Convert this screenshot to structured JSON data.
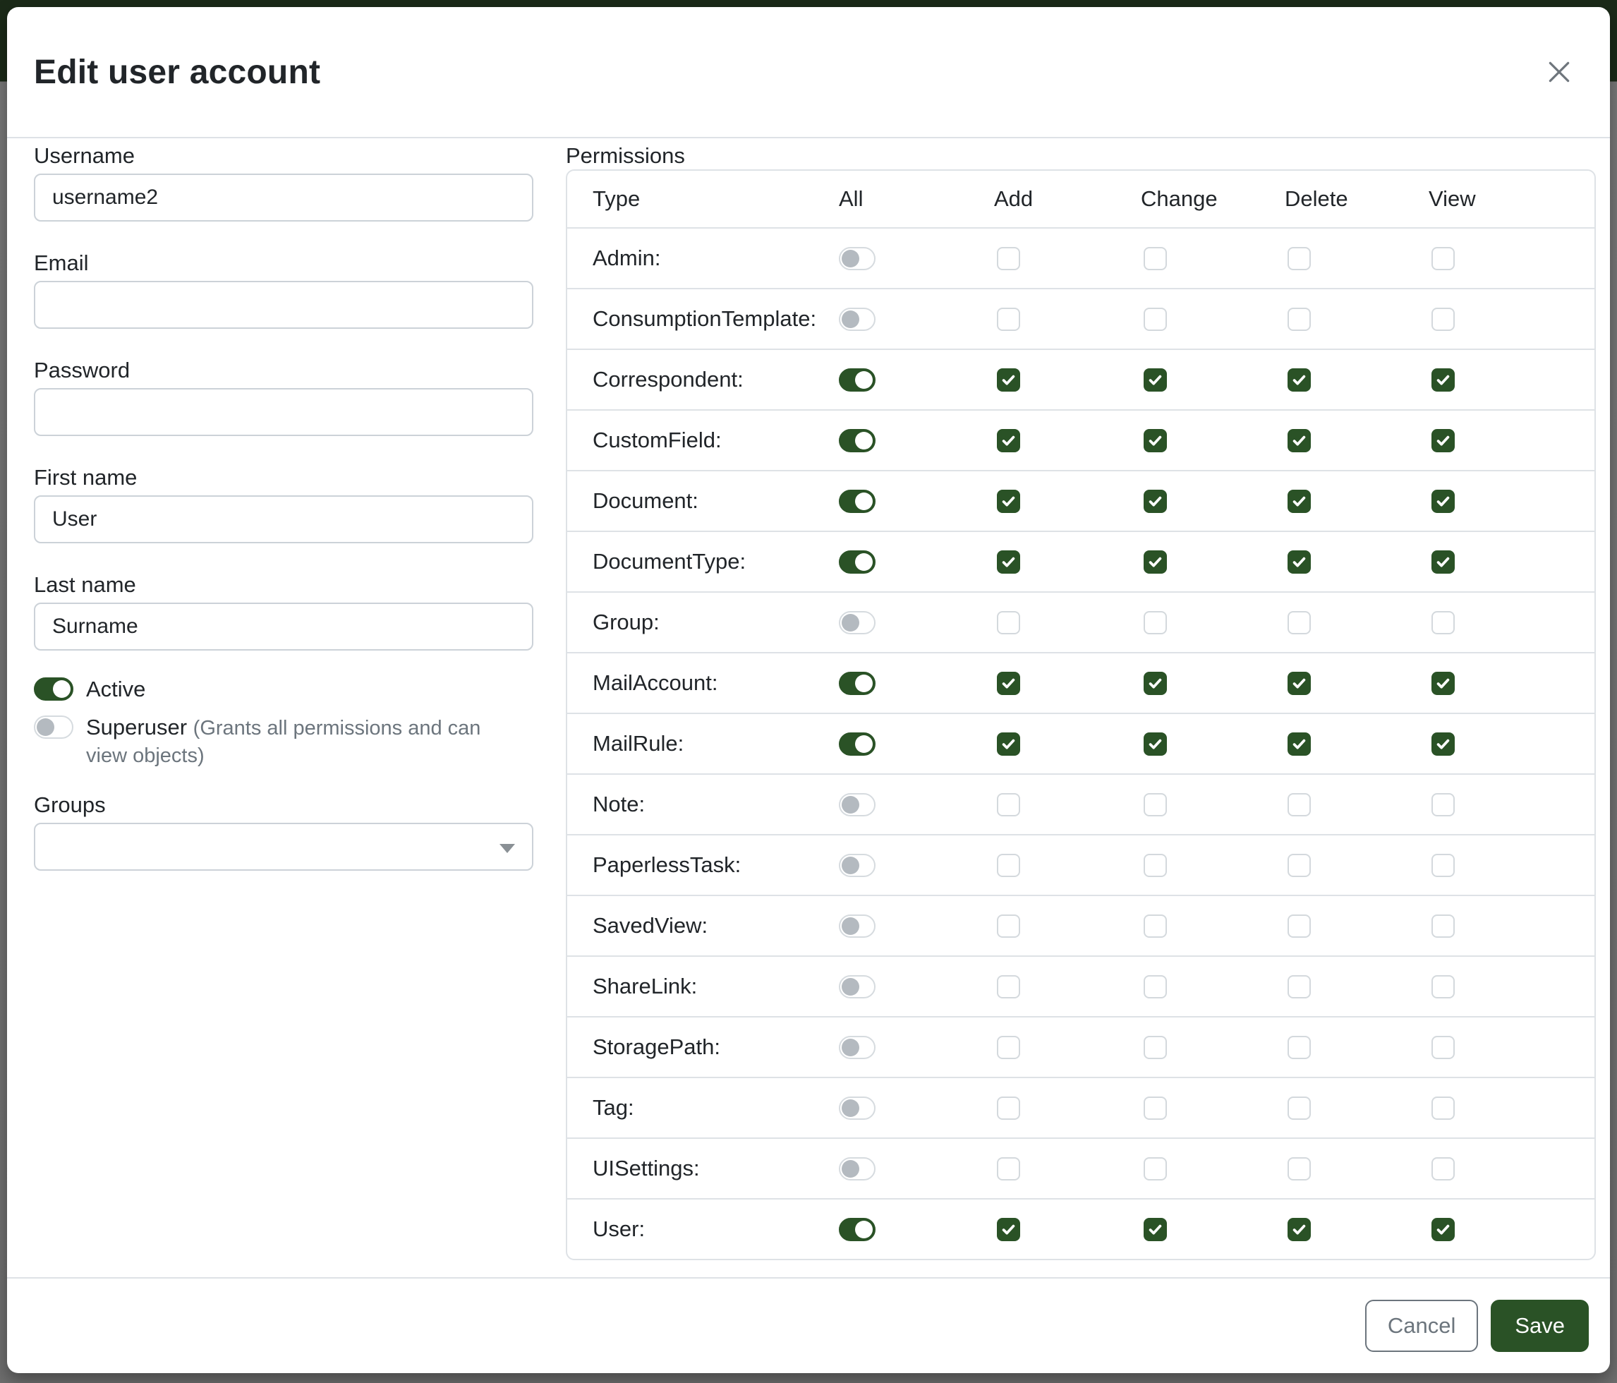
{
  "colors": {
    "accent_green": "#2a5226",
    "border_grey": "#dee2e6",
    "hint_grey": "#6c757d",
    "backdrop_top": "#1b2a18",
    "backdrop_bottom": "#6e6e6e"
  },
  "modal": {
    "title": "Edit user account",
    "close_icon": "x-icon"
  },
  "form": {
    "username": {
      "label": "Username",
      "value": "username2"
    },
    "email": {
      "label": "Email",
      "value": ""
    },
    "password": {
      "label": "Password",
      "value": ""
    },
    "first_name": {
      "label": "First name",
      "value": "User"
    },
    "last_name": {
      "label": "Last name",
      "value": "Surname"
    },
    "active": {
      "label": "Active",
      "on": true
    },
    "superuser": {
      "label": "Superuser",
      "hint": "(Grants all permissions and can view objects)",
      "on": false
    },
    "groups": {
      "label": "Groups",
      "value": ""
    }
  },
  "permissions": {
    "label": "Permissions",
    "headers": [
      "Type",
      "All",
      "Add",
      "Change",
      "Delete",
      "View"
    ],
    "rows": [
      {
        "type": "Admin:",
        "all": false,
        "add": false,
        "change": false,
        "delete": false,
        "view": false
      },
      {
        "type": "ConsumptionTemplate:",
        "all": false,
        "add": false,
        "change": false,
        "delete": false,
        "view": false
      },
      {
        "type": "Correspondent:",
        "all": true,
        "add": true,
        "change": true,
        "delete": true,
        "view": true
      },
      {
        "type": "CustomField:",
        "all": true,
        "add": true,
        "change": true,
        "delete": true,
        "view": true
      },
      {
        "type": "Document:",
        "all": true,
        "add": true,
        "change": true,
        "delete": true,
        "view": true
      },
      {
        "type": "DocumentType:",
        "all": true,
        "add": true,
        "change": true,
        "delete": true,
        "view": true
      },
      {
        "type": "Group:",
        "all": false,
        "add": false,
        "change": false,
        "delete": false,
        "view": false
      },
      {
        "type": "MailAccount:",
        "all": true,
        "add": true,
        "change": true,
        "delete": true,
        "view": true
      },
      {
        "type": "MailRule:",
        "all": true,
        "add": true,
        "change": true,
        "delete": true,
        "view": true
      },
      {
        "type": "Note:",
        "all": false,
        "add": false,
        "change": false,
        "delete": false,
        "view": false
      },
      {
        "type": "PaperlessTask:",
        "all": false,
        "add": false,
        "change": false,
        "delete": false,
        "view": false
      },
      {
        "type": "SavedView:",
        "all": false,
        "add": false,
        "change": false,
        "delete": false,
        "view": false
      },
      {
        "type": "ShareLink:",
        "all": false,
        "add": false,
        "change": false,
        "delete": false,
        "view": false
      },
      {
        "type": "StoragePath:",
        "all": false,
        "add": false,
        "change": false,
        "delete": false,
        "view": false
      },
      {
        "type": "Tag:",
        "all": false,
        "add": false,
        "change": false,
        "delete": false,
        "view": false
      },
      {
        "type": "UISettings:",
        "all": false,
        "add": false,
        "change": false,
        "delete": false,
        "view": false
      },
      {
        "type": "User:",
        "all": true,
        "add": true,
        "change": true,
        "delete": true,
        "view": true
      }
    ]
  },
  "footer": {
    "cancel_label": "Cancel",
    "save_label": "Save"
  }
}
